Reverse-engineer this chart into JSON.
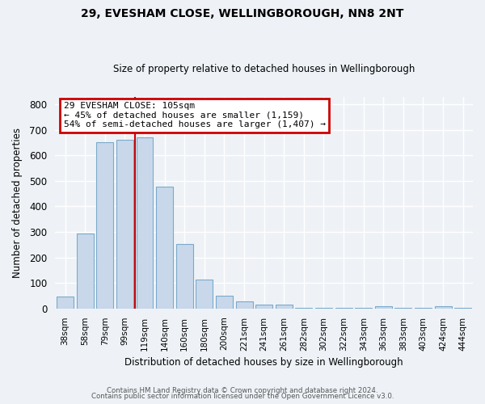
{
  "title": "29, EVESHAM CLOSE, WELLINGBOROUGH, NN8 2NT",
  "subtitle": "Size of property relative to detached houses in Wellingborough",
  "xlabel": "Distribution of detached houses by size in Wellingborough",
  "ylabel": "Number of detached properties",
  "bar_labels": [
    "38sqm",
    "58sqm",
    "79sqm",
    "99sqm",
    "119sqm",
    "140sqm",
    "160sqm",
    "180sqm",
    "200sqm",
    "221sqm",
    "241sqm",
    "261sqm",
    "282sqm",
    "302sqm",
    "322sqm",
    "343sqm",
    "363sqm",
    "383sqm",
    "403sqm",
    "424sqm",
    "444sqm"
  ],
  "bar_values": [
    48,
    293,
    651,
    661,
    671,
    478,
    252,
    113,
    49,
    28,
    15,
    15,
    4,
    4,
    4,
    4,
    8,
    4,
    4,
    8,
    4
  ],
  "bar_color": "#c8d8ea",
  "bar_edge_color": "#7aaaca",
  "reference_line_label": "29 EVESHAM CLOSE: 105sqm",
  "annotation_line1": "← 45% of detached houses are smaller (1,159)",
  "annotation_line2": "54% of semi-detached houses are larger (1,407) →",
  "annotation_box_color": "#ffffff",
  "annotation_box_edge_color": "#cc0000",
  "ylim": [
    0,
    830
  ],
  "yticks": [
    0,
    100,
    200,
    300,
    400,
    500,
    600,
    700,
    800
  ],
  "background_color": "#eef2f7",
  "grid_color": "#ffffff",
  "footer_line1": "Contains HM Land Registry data © Crown copyright and database right 2024.",
  "footer_line2": "Contains public sector information licensed under the Open Government Licence v3.0."
}
